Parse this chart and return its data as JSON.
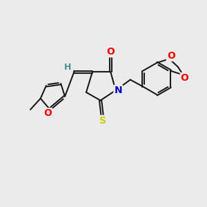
{
  "bg_color": "#ebebeb",
  "bond_color": "#1a1a1a",
  "atom_colors": {
    "O": "#ff0000",
    "N": "#0000cc",
    "S": "#cccc00",
    "H": "#4a9090",
    "C": "#1a1a1a"
  },
  "lw": 1.5,
  "dbo": 0.055,
  "figsize": [
    3.0,
    3.0
  ],
  "dpi": 100
}
